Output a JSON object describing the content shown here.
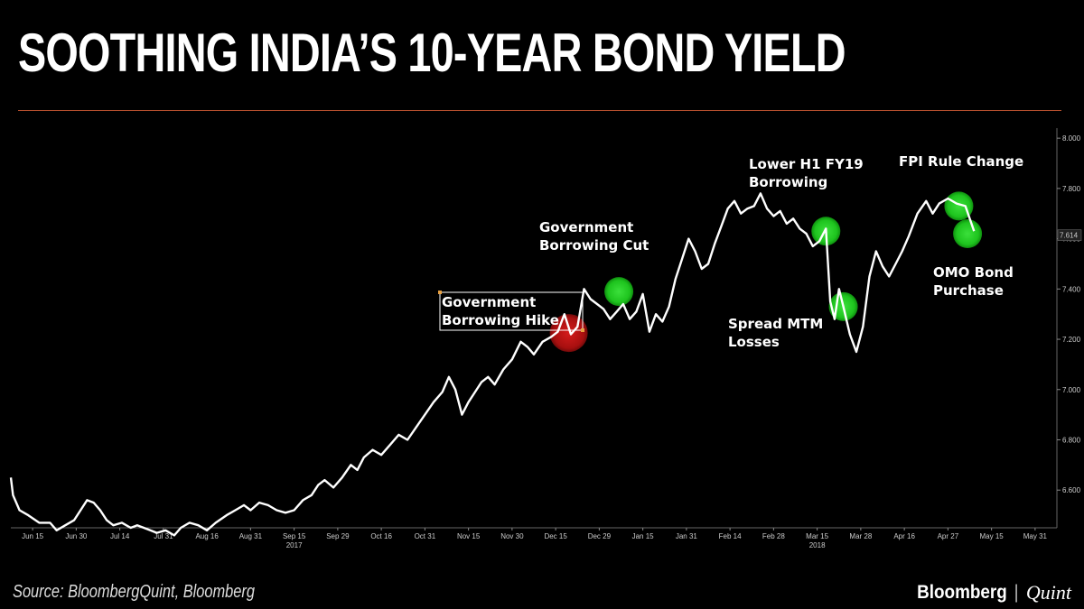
{
  "title": "SOOTHING INDIA’S 10-YEAR BOND YIELD",
  "source": "Source: BloombergQuint, Bloomberg",
  "brand": {
    "name": "Bloomberg",
    "separator": "|",
    "partner": "Quint"
  },
  "colors": {
    "background": "#000000",
    "line": "#ffffff",
    "rule": "#b8502e",
    "green": "#22c422",
    "red": "#c81414"
  },
  "chart_data": {
    "type": "line",
    "ylim": [
      6.45,
      8.04
    ],
    "yticks": [
      "6.600",
      "6.800",
      "7.000",
      "7.200",
      "7.400",
      "7.600",
      "7.800",
      "8.000"
    ],
    "last_value_label": "7.614",
    "x_ticks": [
      {
        "label": "Jun 15",
        "value": 0.5
      },
      {
        "label": "Jun 30",
        "value": 1.5
      },
      {
        "label": "Jul 14",
        "value": 2.5
      },
      {
        "label": "Jul 31",
        "value": 3.5
      },
      {
        "label": "Aug 16",
        "value": 4.5
      },
      {
        "label": "Aug 31",
        "value": 5.5
      },
      {
        "label": "Sep 15",
        "value": 6.5
      },
      {
        "label": "Sep 29",
        "value": 7.5
      },
      {
        "label": "Oct 16",
        "value": 8.5
      },
      {
        "label": "Oct 31",
        "value": 9.5
      },
      {
        "label": "Nov 15",
        "value": 10.5
      },
      {
        "label": "Nov 30",
        "value": 11.5
      },
      {
        "label": "Dec 15",
        "value": 12.5
      },
      {
        "label": "Dec 29",
        "value": 13.5
      },
      {
        "label": "Jan 15",
        "value": 14.5
      },
      {
        "label": "Jan 31",
        "value": 15.5
      },
      {
        "label": "Feb 14",
        "value": 16.5
      },
      {
        "label": "Feb 28",
        "value": 17.5
      },
      {
        "label": "Mar 15",
        "value": 18.5
      },
      {
        "label": "Mar 28",
        "value": 19.5
      },
      {
        "label": "Apr 16",
        "value": 20.5
      },
      {
        "label": "Apr 27",
        "value": 21.5
      },
      {
        "label": "May 15",
        "value": 22.5
      },
      {
        "label": "May 31",
        "value": 23.5
      }
    ],
    "year_labels": [
      {
        "label": "2017",
        "value": 6.5
      },
      {
        "label": "2018",
        "value": 18.5
      }
    ],
    "series": [
      {
        "x": [
          0.0,
          0.05,
          0.2,
          0.4,
          0.65,
          0.9,
          1.05,
          1.25,
          1.45,
          1.6,
          1.75,
          1.9,
          2.05,
          2.2,
          2.35,
          2.55,
          2.75,
          2.9,
          3.05,
          3.2,
          3.35,
          3.55,
          3.75,
          3.9,
          4.1,
          4.3,
          4.5,
          4.7,
          4.95,
          5.15,
          5.35,
          5.5,
          5.7,
          5.9,
          6.1,
          6.3,
          6.5,
          6.7,
          6.9,
          7.05,
          7.2,
          7.4,
          7.6,
          7.8,
          7.95,
          8.1,
          8.3,
          8.5,
          8.7,
          8.9,
          9.1,
          9.3,
          9.5,
          9.7,
          9.9,
          10.05,
          10.2,
          10.35,
          10.5,
          10.65,
          10.8,
          10.95,
          11.1,
          11.3,
          11.5,
          11.7,
          11.85,
          12.0,
          12.2,
          12.4,
          12.55,
          12.7,
          12.85,
          13.0,
          13.15,
          13.3,
          13.45,
          13.6,
          13.75,
          13.9,
          14.05,
          14.2,
          14.35,
          14.5,
          14.65,
          14.8,
          14.95,
          15.1,
          15.25,
          15.4,
          15.55,
          15.7,
          15.85,
          16.0,
          16.15,
          16.3,
          16.45,
          16.6,
          16.75,
          16.9,
          17.05,
          17.2,
          17.35,
          17.5,
          17.65,
          17.8,
          17.95,
          18.1,
          18.25,
          18.4,
          18.55,
          18.7,
          18.8,
          18.9,
          19.0,
          19.1,
          19.25,
          19.4,
          19.55,
          19.7,
          19.85,
          20.0,
          20.15,
          20.3,
          20.45,
          20.6,
          20.8,
          21.0,
          21.15,
          21.3,
          21.5,
          21.7,
          21.9,
          22.1
        ],
        "y": [
          6.65,
          6.58,
          6.52,
          6.5,
          6.47,
          6.47,
          6.44,
          6.46,
          6.48,
          6.52,
          6.56,
          6.55,
          6.52,
          6.48,
          6.46,
          6.47,
          6.45,
          6.46,
          6.45,
          6.44,
          6.43,
          6.44,
          6.42,
          6.45,
          6.47,
          6.46,
          6.44,
          6.47,
          6.5,
          6.52,
          6.54,
          6.52,
          6.55,
          6.54,
          6.52,
          6.51,
          6.52,
          6.56,
          6.58,
          6.62,
          6.64,
          6.61,
          6.65,
          6.7,
          6.68,
          6.73,
          6.76,
          6.74,
          6.78,
          6.82,
          6.8,
          6.85,
          6.9,
          6.95,
          6.99,
          7.05,
          7.0,
          6.9,
          6.95,
          6.99,
          7.03,
          7.05,
          7.02,
          7.08,
          7.12,
          7.19,
          7.17,
          7.14,
          7.19,
          7.21,
          7.23,
          7.3,
          7.22,
          7.25,
          7.4,
          7.36,
          7.34,
          7.32,
          7.28,
          7.31,
          7.34,
          7.28,
          7.31,
          7.38,
          7.23,
          7.3,
          7.27,
          7.33,
          7.44,
          7.52,
          7.6,
          7.55,
          7.48,
          7.5,
          7.58,
          7.65,
          7.72,
          7.75,
          7.7,
          7.72,
          7.73,
          7.78,
          7.72,
          7.69,
          7.71,
          7.66,
          7.68,
          7.64,
          7.62,
          7.57,
          7.59,
          7.64,
          7.35,
          7.28,
          7.4,
          7.33,
          7.22,
          7.15,
          7.25,
          7.45,
          7.55,
          7.49,
          7.45,
          7.5,
          7.55,
          7.61,
          7.7,
          7.75,
          7.7,
          7.74,
          7.76,
          7.74,
          7.73,
          7.63
        ]
      }
    ],
    "markers": [
      {
        "color": "red",
        "x": 12.8,
        "y": 7.225
      },
      {
        "color": "green",
        "x": 13.95,
        "y": 7.39
      },
      {
        "color": "green",
        "x": 18.7,
        "y": 7.63
      },
      {
        "color": "green",
        "x": 19.1,
        "y": 7.33
      },
      {
        "color": "green",
        "x": 21.75,
        "y": 7.73
      },
      {
        "color": "green",
        "x": 21.95,
        "y": 7.62
      }
    ],
    "annotations": [
      {
        "id": "gov-borrowing-hike",
        "lines": [
          "Government",
          "Borrowing Hike"
        ],
        "boxed": true
      },
      {
        "id": "gov-borrowing-cut",
        "lines": [
          "Government",
          "Borrowing Cut"
        ]
      },
      {
        "id": "lower-h1",
        "lines": [
          "Lower H1 FY19",
          "Borrowing"
        ]
      },
      {
        "id": "fpi-rule",
        "lines": [
          "FPI Rule Change"
        ]
      },
      {
        "id": "omo-bond",
        "lines": [
          "OMO Bond",
          "Purchase"
        ]
      },
      {
        "id": "spread-mtm",
        "lines": [
          "Spread MTM",
          "Losses"
        ]
      }
    ]
  }
}
